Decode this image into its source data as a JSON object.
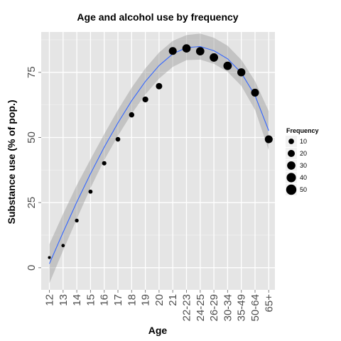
{
  "chart_data": {
    "type": "scatter",
    "title": "Age and alcohol use by frequency",
    "xlabel": "Age",
    "ylabel": "Substance use (% of pop.)",
    "categories": [
      "12",
      "13",
      "14",
      "15",
      "16",
      "17",
      "18",
      "19",
      "20",
      "21",
      "22-23",
      "24-25",
      "26-29",
      "30-34",
      "35-49",
      "50-64",
      "65+"
    ],
    "series": [
      {
        "values": [
          3.9,
          8.5,
          18.1,
          29.2,
          40.1,
          49.3,
          58.7,
          64.6,
          69.7,
          83.2,
          84.2,
          83.1,
          80.7,
          77.5,
          75.0,
          67.2,
          49.3
        ],
        "frequency": [
          1,
          2,
          3,
          4,
          5,
          6,
          9,
          12,
          15,
          26,
          30,
          30,
          31,
          31,
          28,
          26,
          26
        ]
      }
    ],
    "smooth_line": [
      1.5,
      13.6,
      25.2,
      36.1,
      46.3,
      55.6,
      64.1,
      71.5,
      77.6,
      82.1,
      84.5,
      84.9,
      83.3,
      80.2,
      74.8,
      66.1,
      52.6
    ],
    "smooth_band": [
      7.5,
      7.0,
      6.5,
      5.5,
      5.0,
      5.0,
      5.0,
      5.0,
      5.0,
      5.0,
      4.8,
      5.0,
      5.0,
      5.0,
      5.0,
      5.5,
      7.5
    ],
    "yticks": [
      0,
      25,
      50,
      75
    ],
    "ylim": [
      -8.5,
      90.5
    ],
    "grid": true,
    "legend": {
      "title": "Frequency",
      "placement": "right",
      "entries": [
        {
          "label": "10",
          "value": 10
        },
        {
          "label": "20",
          "value": 20
        },
        {
          "label": "30",
          "value": 30
        },
        {
          "label": "40",
          "value": 40
        },
        {
          "label": "50",
          "value": 50
        }
      ]
    },
    "colors": {
      "panel": "#e5e5e5",
      "gridMajor": "#ffffff",
      "gridMinor": "#f2f2f2",
      "point": "#000000",
      "line": "#3366ff",
      "band": "#999999"
    }
  }
}
